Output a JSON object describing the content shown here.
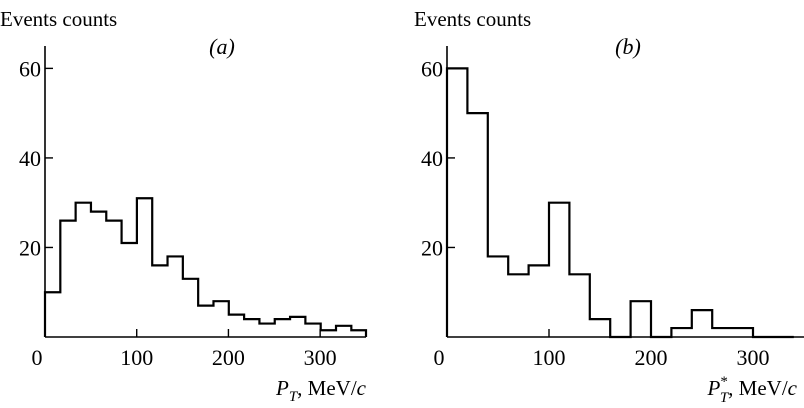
{
  "chart_data": [
    {
      "type": "bar",
      "panel_label": "(a)",
      "ylabel": "Events counts",
      "xlabel": {
        "symbol": "P",
        "subscript": "T",
        "superscript": "",
        "unit_prefix": ", MeV/",
        "unit_italic": "c"
      },
      "xlim": [
        0,
        350
      ],
      "ylim": [
        0,
        65
      ],
      "xticks": [
        0,
        100,
        200,
        300
      ],
      "yticks": [
        20,
        40,
        60
      ],
      "ytick_labels_shown": [
        "20",
        "40",
        "60"
      ],
      "xtick_labels": [
        "0",
        "100",
        "200",
        "300"
      ],
      "bin_width": 16.7,
      "bin_starts": [
        0,
        16.7,
        33.4,
        50.1,
        66.8,
        83.5,
        100.2,
        116.9,
        133.6,
        150.3,
        167,
        183.7,
        200.4,
        217.1,
        233.8,
        250.5,
        267.2,
        283.9,
        300.6,
        317.3,
        334
      ],
      "values": [
        10,
        26,
        30,
        28,
        26,
        21,
        31,
        16,
        18,
        13,
        7,
        8,
        5,
        4,
        3,
        4,
        4.5,
        3,
        1.5,
        2.5,
        1.5
      ]
    },
    {
      "type": "bar",
      "panel_label": "(b)",
      "ylabel": "Events counts",
      "xlabel": {
        "symbol": "P",
        "subscript": "T",
        "superscript": "*",
        "unit_prefix": ", MeV/",
        "unit_italic": "c"
      },
      "xlim": [
        0,
        350
      ],
      "ylim": [
        0,
        65
      ],
      "xticks": [
        0,
        100,
        200,
        300
      ],
      "yticks": [
        20,
        40,
        60
      ],
      "ytick_labels_shown": [
        "20",
        "40",
        "60"
      ],
      "xtick_labels": [
        "0",
        "100",
        "200",
        "300"
      ],
      "bin_width": 20,
      "bin_starts": [
        0,
        20,
        40,
        60,
        80,
        100,
        120,
        140,
        160,
        180,
        200,
        220,
        240,
        260,
        280,
        300,
        320
      ],
      "values": [
        60,
        50,
        18,
        14,
        16,
        30,
        14,
        4,
        0,
        8,
        0,
        2,
        6,
        2,
        2,
        0,
        0
      ]
    }
  ]
}
